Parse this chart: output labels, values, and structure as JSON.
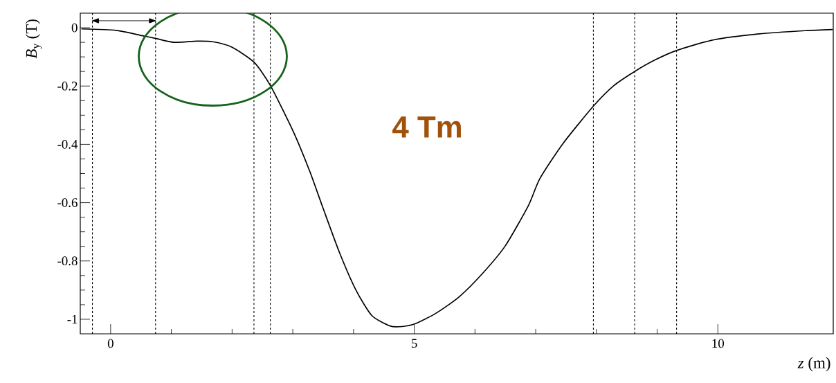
{
  "chart_data": {
    "type": "line",
    "xlabel": "*z* (m)",
    "ylabel": "*B*$_{y}$ (T)",
    "annotations": [
      "4 Tm"
    ],
    "xlim": [
      -0.5,
      11.9
    ],
    "ylim": [
      -1.05,
      0.05
    ],
    "xticks": [
      0,
      5,
      10
    ],
    "yticks": [
      -1,
      -0.8,
      -0.6,
      -0.4,
      -0.2,
      0
    ],
    "series": [
      {
        "color": "#000000",
        "line_style": "solid",
        "x": [
          -0.48,
          0.09,
          0.54,
          0.75,
          1.04,
          1.42,
          1.68,
          1.99,
          2.36,
          2.63,
          3.01,
          3.28,
          3.5,
          3.77,
          4.04,
          4.3,
          4.6,
          4.8,
          5.02,
          5.36,
          5.74,
          6.12,
          6.5,
          6.88,
          7.07,
          7.45,
          7.95,
          8.29,
          8.63,
          8.97,
          9.32,
          9.92,
          10.68,
          11.44,
          11.89
        ],
        "values": [
          -0.004,
          -0.009,
          -0.028,
          -0.037,
          -0.05,
          -0.046,
          -0.048,
          -0.066,
          -0.118,
          -0.198,
          -0.357,
          -0.493,
          -0.62,
          -0.772,
          -0.9,
          -0.987,
          -1.023,
          -1.025,
          -1.015,
          -0.979,
          -0.923,
          -0.844,
          -0.748,
          -0.61,
          -0.517,
          -0.397,
          -0.269,
          -0.198,
          -0.15,
          -0.11,
          -0.078,
          -0.042,
          -0.021,
          -0.01,
          -0.006
        ]
      }
    ],
    "ref_lines": [
      {
        "axis": "x",
        "value": -0.3,
        "line_style": "dashed",
        "color": "#000000"
      },
      {
        "axis": "x",
        "value": 0.74,
        "line_style": "dashed",
        "color": "#000000"
      },
      {
        "axis": "x",
        "value": 2.36,
        "line_style": "dashed",
        "color": "#000000"
      },
      {
        "axis": "x",
        "value": 2.63,
        "line_style": "dashed",
        "color": "#000000"
      },
      {
        "axis": "x",
        "value": 7.95,
        "line_style": "dashed",
        "color": "#000000"
      },
      {
        "axis": "x",
        "value": 8.63,
        "line_style": "dashed",
        "color": "#000000"
      },
      {
        "axis": "x",
        "value": 9.32,
        "line_style": "dashed",
        "color": "#000000"
      }
    ]
  }
}
